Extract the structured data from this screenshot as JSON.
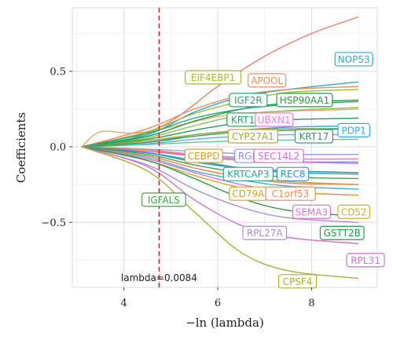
{
  "chart_data": {
    "type": "line",
    "xlabel": "−ln (lambda)",
    "ylabel": "Coefficients",
    "xlim": [
      2.9,
      9.4
    ],
    "ylim": [
      -0.93,
      0.92
    ],
    "xticks": [
      4,
      6,
      8
    ],
    "yticks": [
      0.5,
      0.0,
      -0.5
    ],
    "ytick_labels": [
      "0.5",
      "0.0",
      "−0.5"
    ],
    "grid": true,
    "cutoff": {
      "x": 4.75,
      "color": "#d62728",
      "label": "lambda=0.0084"
    },
    "series": [
      {
        "name": "NOP53",
        "color": "#2aa9d9",
        "x": [
          3.1,
          4.5,
          5.5,
          6.5,
          7.5,
          9.0
        ],
        "y": [
          0,
          0.08,
          0.23,
          0.33,
          0.38,
          0.43
        ]
      },
      {
        "name": "APOOL",
        "color": "#ef8a5c",
        "x": [
          3.1,
          4.5,
          5.5,
          6.5,
          7.5,
          9.0
        ],
        "y": [
          0,
          0.12,
          0.25,
          0.34,
          0.38,
          0.4
        ]
      },
      {
        "name": "EIF4EBP1",
        "color": "#a7b932",
        "x": [
          3.1,
          4.5,
          5.5,
          6.5,
          7.5,
          9.0
        ],
        "y": [
          0,
          0.1,
          0.22,
          0.3,
          0.36,
          0.38
        ]
      },
      {
        "name": "HSP90AA1",
        "color": "#1e9e3a",
        "x": [
          3.1,
          4.5,
          5.5,
          6.5,
          7.5,
          9.0
        ],
        "y": [
          0,
          0.07,
          0.17,
          0.25,
          0.29,
          0.31
        ]
      },
      {
        "name": "IGF2R",
        "color": "#20a877",
        "x": [
          3.1,
          4.5,
          5.5,
          6.5,
          7.5,
          9.0
        ],
        "y": [
          0,
          0.09,
          0.19,
          0.25,
          0.28,
          0.3
        ]
      },
      {
        "name": "UBXN1",
        "color": "#e87de8",
        "x": [
          3.1,
          4.5,
          5.5,
          6.5,
          7.5,
          9.0
        ],
        "y": [
          0,
          0.05,
          0.11,
          0.16,
          0.18,
          0.19
        ]
      },
      {
        "name": "KRT15",
        "color": "#25a85f",
        "x": [
          3.1,
          4.5,
          5.5,
          6.5,
          7.5,
          9.0
        ],
        "y": [
          0,
          0.05,
          0.11,
          0.16,
          0.18,
          0.19
        ]
      },
      {
        "name": "PDP1",
        "color": "#35a9e0",
        "x": [
          3.1,
          4.5,
          5.5,
          6.5,
          7.5,
          9.0
        ],
        "y": [
          0,
          0.03,
          0.08,
          0.11,
          0.13,
          0.14
        ]
      },
      {
        "name": "CYP27A1",
        "color": "#b5a21c",
        "x": [
          3.1,
          4.5,
          5.5,
          6.5,
          7.5,
          9.0
        ],
        "y": [
          0,
          0.04,
          0.08,
          0.11,
          0.12,
          0.12
        ]
      },
      {
        "name": "KRT17",
        "color": "#24a06b",
        "x": [
          3.1,
          4.5,
          5.5,
          6.5,
          7.5,
          9.0
        ],
        "y": [
          0,
          0.03,
          0.07,
          0.1,
          0.11,
          0.12
        ]
      },
      {
        "name": "CEBPD",
        "color": "#d59a2a",
        "x": [
          3.1,
          4.5,
          5.5,
          6.5,
          7.5,
          9.0
        ],
        "y": [
          0,
          -0.02,
          -0.06,
          -0.09,
          -0.1,
          -0.1
        ]
      },
      {
        "name": "RGL3",
        "color": "#8e8ee6",
        "x": [
          3.1,
          4.5,
          5.5,
          6.5,
          7.5,
          9.0
        ],
        "y": [
          0,
          -0.03,
          -0.06,
          -0.08,
          -0.1,
          -0.1
        ]
      },
      {
        "name": "SEC14L2",
        "color": "#d56bd8",
        "x": [
          3.1,
          4.5,
          5.5,
          6.5,
          7.5,
          9.0
        ],
        "y": [
          0,
          -0.03,
          -0.06,
          -0.09,
          -0.1,
          -0.11
        ]
      },
      {
        "name": "KRTCAP3",
        "color": "#20a897",
        "x": [
          3.1,
          4.5,
          5.5,
          6.5,
          7.5,
          9.0
        ],
        "y": [
          0,
          -0.04,
          -0.09,
          -0.14,
          -0.17,
          -0.18
        ]
      },
      {
        "name": "REC8",
        "color": "#2e8fd6",
        "x": [
          3.1,
          4.5,
          5.5,
          6.5,
          7.5,
          9.0
        ],
        "y": [
          0,
          -0.04,
          -0.1,
          -0.14,
          -0.16,
          -0.17
        ]
      },
      {
        "name": "CD79A",
        "color": "#d7a02a",
        "x": [
          3.1,
          4.5,
          5.5,
          6.5,
          7.5,
          9.0
        ],
        "y": [
          0,
          -0.06,
          -0.14,
          -0.2,
          -0.23,
          -0.25
        ]
      },
      {
        "name": "C1orf53",
        "color": "#ee8855",
        "x": [
          3.1,
          4.5,
          5.5,
          6.5,
          7.5,
          9.0
        ],
        "y": [
          0,
          -0.06,
          -0.14,
          -0.2,
          -0.24,
          -0.25
        ]
      },
      {
        "name": "IGFALS",
        "color": "#43a24a",
        "x": [
          3.1,
          4.5,
          5.5,
          6.5,
          7.5,
          9.0
        ],
        "y": [
          0,
          -0.05,
          -0.12,
          -0.17,
          -0.2,
          -0.21
        ]
      },
      {
        "name": "SEMA3",
        "color": "#e46fd3",
        "x": [
          3.1,
          4.5,
          5.5,
          6.5,
          7.5,
          9.0
        ],
        "y": [
          0,
          -0.08,
          -0.17,
          -0.25,
          -0.3,
          -0.32
        ]
      },
      {
        "name": "CD52",
        "color": "#e0a62b",
        "x": [
          3.1,
          4.5,
          5.5,
          6.5,
          7.5,
          9.0
        ],
        "y": [
          0,
          -0.09,
          -0.19,
          -0.27,
          -0.3,
          -0.32
        ]
      },
      {
        "name": "RPL27A",
        "color": "#a58fd8",
        "x": [
          3.1,
          4.5,
          5.5,
          6.5,
          7.5,
          9.0
        ],
        "y": [
          0,
          -0.12,
          -0.28,
          -0.4,
          -0.47,
          -0.5
        ]
      },
      {
        "name": "GSTT2B",
        "color": "#1f9d47",
        "x": [
          3.1,
          4.5,
          5.5,
          6.5,
          7.5,
          9.0
        ],
        "y": [
          0,
          -0.09,
          -0.21,
          -0.34,
          -0.42,
          -0.46
        ]
      },
      {
        "name": "RPL31",
        "color": "#cf6fd2",
        "x": [
          3.1,
          4.5,
          5.5,
          6.5,
          7.5,
          9.0
        ],
        "y": [
          0,
          -0.13,
          -0.35,
          -0.52,
          -0.6,
          -0.64
        ]
      },
      {
        "name": "CPSF4",
        "color": "#a8b12f",
        "x": [
          3.1,
          4.5,
          5.5,
          6.5,
          7.5,
          9.0
        ],
        "y": [
          0,
          -0.16,
          -0.43,
          -0.7,
          -0.82,
          -0.87
        ]
      }
    ],
    "extra_curves": [
      {
        "color": "#f07a6a",
        "x": [
          3.1,
          4.0,
          5.0,
          6.0,
          7.0,
          8.0,
          9.0
        ],
        "y": [
          0,
          0.04,
          0.17,
          0.4,
          0.6,
          0.75,
          0.86
        ]
      },
      {
        "color": "#f4a261",
        "x": [
          3.1,
          3.5,
          4.2,
          5.0,
          6.0,
          7.0,
          9.0
        ],
        "y": [
          0,
          0.1,
          0.09,
          0.13,
          0.2,
          0.23,
          0.25
        ]
      },
      {
        "color": "#5ab0e0",
        "x": [
          3.1,
          4.5,
          5.5,
          6.5,
          7.5,
          9.0
        ],
        "y": [
          0,
          0.02,
          0.05,
          0.07,
          0.08,
          0.08
        ]
      },
      {
        "color": "#66c2a5",
        "x": [
          3.1,
          4.5,
          5.5,
          6.5,
          7.5,
          9.0
        ],
        "y": [
          0,
          0.015,
          0.03,
          0.04,
          0.045,
          0.05
        ]
      },
      {
        "color": "#9e9ae0",
        "x": [
          3.1,
          4.5,
          5.5,
          6.5,
          7.5,
          9.0
        ],
        "y": [
          0,
          -0.015,
          -0.03,
          -0.045,
          -0.05,
          -0.05
        ]
      },
      {
        "color": "#e377c2",
        "x": [
          3.1,
          4.5,
          5.5,
          6.5,
          7.5,
          9.0
        ],
        "y": [
          0,
          -0.02,
          -0.05,
          -0.07,
          -0.08,
          -0.08
        ]
      },
      {
        "color": "#8cc152",
        "x": [
          3.1,
          4.5,
          5.5,
          6.5,
          7.5,
          9.0
        ],
        "y": [
          0,
          0.06,
          0.14,
          0.21,
          0.24,
          0.26
        ]
      },
      {
        "color": "#3cb4c8",
        "x": [
          3.1,
          4.5,
          5.5,
          6.5,
          7.5,
          9.0
        ],
        "y": [
          0,
          -0.07,
          -0.16,
          -0.22,
          -0.26,
          -0.28
        ]
      }
    ],
    "labels": [
      {
        "text": "NOP53",
        "color": "#2aa9d9",
        "x": 8.9,
        "y": 0.58
      },
      {
        "text": "EIF4EBP1",
        "color": "#a7b932",
        "x": 5.9,
        "y": 0.46
      },
      {
        "text": "APOOL",
        "color": "#ef8a5c",
        "x": 7.05,
        "y": 0.44
      },
      {
        "text": "IGF2R",
        "color": "#20a877",
        "x": 6.65,
        "y": 0.31
      },
      {
        "text": "HSP90AA1",
        "color": "#1e9e3a",
        "x": 7.85,
        "y": 0.31
      },
      {
        "text": "KRT15",
        "color": "#25a85f",
        "x": 6.6,
        "y": 0.18
      },
      {
        "text": "UBXN1",
        "color": "#e87de8",
        "x": 7.2,
        "y": 0.18
      },
      {
        "text": "PDP1",
        "color": "#35a9e0",
        "x": 8.9,
        "y": 0.11
      },
      {
        "text": "CYP27A1",
        "color": "#b5a21c",
        "x": 6.75,
        "y": 0.07
      },
      {
        "text": "KRT17",
        "color": "#24a06b",
        "x": 8.05,
        "y": 0.07
      },
      {
        "text": "CEBPD",
        "color": "#d59a2a",
        "x": 5.7,
        "y": -0.06
      },
      {
        "text": "RGL3",
        "color": "#8e8ee6",
        "x": 6.7,
        "y": -0.06
      },
      {
        "text": "SEC14L2",
        "color": "#d56bd8",
        "x": 7.3,
        "y": -0.06
      },
      {
        "text": "KRTCAP3",
        "color": "#20a897",
        "x": 6.65,
        "y": -0.18
      },
      {
        "text": "REC8",
        "color": "#2e8fd6",
        "x": 7.6,
        "y": -0.18
      },
      {
        "text": "CD79A",
        "color": "#d7a02a",
        "x": 6.65,
        "y": -0.31
      },
      {
        "text": "C1orf53",
        "color": "#ee8855",
        "x": 7.55,
        "y": -0.31
      },
      {
        "text": "IGFALS",
        "color": "#43a24a",
        "x": 4.85,
        "y": -0.35
      },
      {
        "text": "SEMA3",
        "color": "#e46fd3",
        "x": 8.0,
        "y": -0.43
      },
      {
        "text": "CD52",
        "color": "#e0a62b",
        "x": 8.9,
        "y": -0.43
      },
      {
        "text": "RPL27A",
        "color": "#a58fd8",
        "x": 7.0,
        "y": -0.57
      },
      {
        "text": "GSTT2B",
        "color": "#1f9d47",
        "x": 8.65,
        "y": -0.57
      },
      {
        "text": "RPL31",
        "color": "#cf6fd2",
        "x": 9.15,
        "y": -0.75
      },
      {
        "text": "CPSF4",
        "color": "#a8b12f",
        "x": 7.7,
        "y": -0.89
      }
    ]
  }
}
